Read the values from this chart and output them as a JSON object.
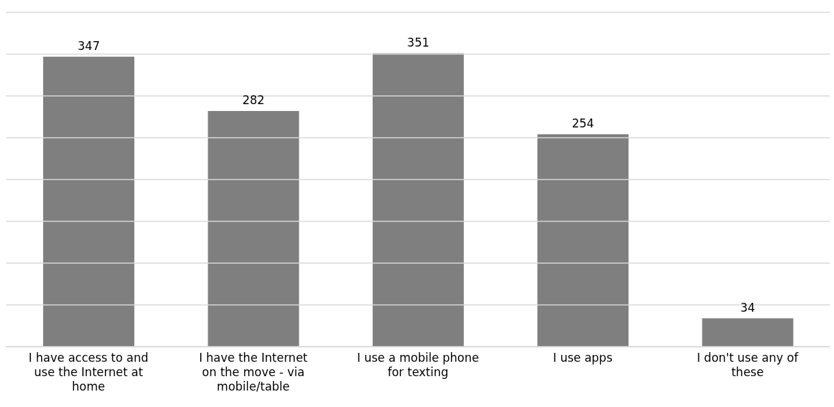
{
  "chart_data": {
    "type": "bar",
    "categories": [
      "I have access to and use the Internet at home",
      "I have the Internet on the move - via mobile/table",
      "I use a mobile phone for texting",
      "I use apps",
      "I don't use any of these"
    ],
    "values": [
      347,
      282,
      351,
      254,
      34
    ],
    "color": "#7f7f7f",
    "ylim": [
      0,
      400
    ],
    "yticks": [
      {
        "value": 0,
        "label": null
      },
      {
        "value": 50,
        "label": null
      },
      {
        "value": 100,
        "label": null
      },
      {
        "value": 150,
        "label": null
      },
      {
        "value": 200,
        "label": null
      },
      {
        "value": 250,
        "label": null
      },
      {
        "value": 300,
        "label": null
      },
      {
        "value": 350,
        "label": null
      },
      {
        "value": 400,
        "label": null
      }
    ],
    "tick_labels": "x",
    "grid": "y",
    "data_labels": true
  }
}
